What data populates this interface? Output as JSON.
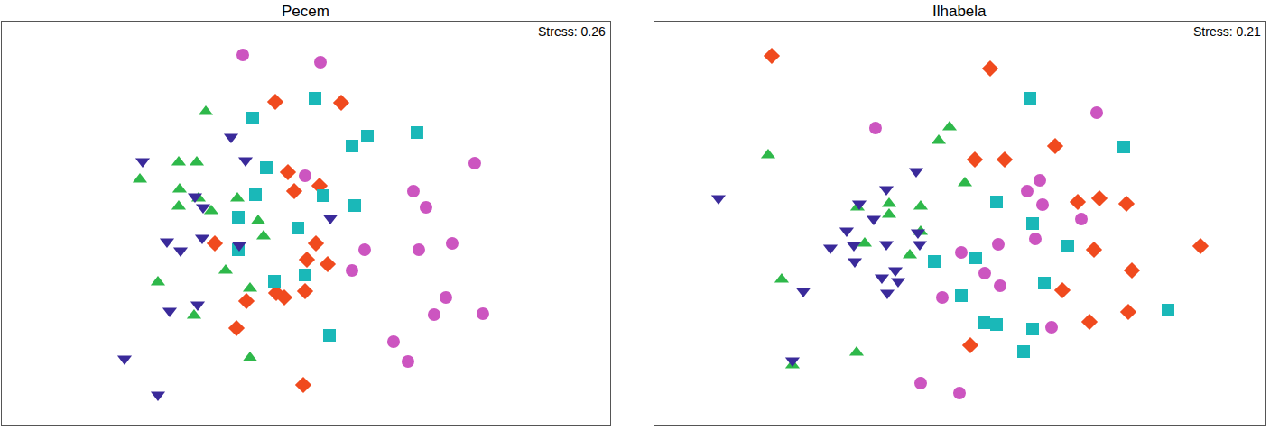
{
  "chart_data": [
    {
      "type": "scatter",
      "title": "Pecem",
      "annotation": "Stress: 0.26",
      "xlim": [
        0,
        674
      ],
      "ylim": [
        0,
        448
      ],
      "tick_labels": false,
      "grid": false,
      "series": [
        {
          "color": "#cc55c0",
          "marker": "circle",
          "x": [
            267,
            353,
            336,
            524,
            456,
            470,
            499,
            462,
            402,
            388,
            492,
            479,
            533,
            434,
            450
          ],
          "y": [
            411,
            403,
            277,
            291,
            260,
            242,
            202,
            195,
            195,
            172,
            142,
            123,
            124,
            93,
            71
          ]
        },
        {
          "color": "#f04a1e",
          "marker": "diamond",
          "x": [
            303,
            376,
            317,
            352,
            324,
            236,
            348,
            338,
            361,
            313,
            304,
            271,
            336,
            260,
            334
          ],
          "y": [
            359,
            358,
            281,
            266,
            260,
            202,
            202,
            184,
            179,
            142,
            147,
            138,
            149,
            108,
            45
          ]
        },
        {
          "color": "#1ab8b8",
          "marker": "square",
          "x": [
            278,
            347,
            388,
            405,
            460,
            293,
            356,
            281,
            391,
            262,
            328,
            262,
            336,
            302,
            363
          ],
          "y": [
            341,
            363,
            310,
            321,
            325,
            286,
            255,
            256,
            244,
            231,
            219,
            195,
            167,
            160,
            100
          ]
        },
        {
          "color": "#2eb84a",
          "marker": "triangle-up",
          "x": [
            226,
            196,
            216,
            153,
            197,
            218,
            232,
            196,
            261,
            284,
            290,
            248,
            173,
            275,
            213,
            275
          ],
          "y": [
            348,
            292,
            292,
            273,
            262,
            252,
            238,
            243,
            252,
            227,
            210,
            172,
            159,
            152,
            122,
            75
          ]
        },
        {
          "color": "#3a2a9a",
          "marker": "triangle-down",
          "x": [
            156,
            254,
            270,
            214,
            223,
            364,
            183,
            198,
            222,
            263,
            186,
            217,
            136,
            173
          ],
          "y": [
            293,
            320,
            294,
            254,
            242,
            230,
            204,
            194,
            208,
            200,
            127,
            134,
            74,
            34
          ]
        }
      ]
    },
    {
      "type": "scatter",
      "title": "Ilhabela",
      "annotation": "Stress: 0.21",
      "xlim": [
        0,
        677
      ],
      "ylim": [
        0,
        448
      ],
      "tick_labels": false,
      "grid": false,
      "series": [
        {
          "color": "#cc55c0",
          "marker": "circle",
          "x": [
            490,
            245,
            427,
            413,
            430,
            473,
            422,
            381,
            340,
            366,
            383,
            319,
            440,
            295,
            338
          ],
          "y": [
            347,
            330,
            272,
            260,
            245,
            229,
            207,
            201,
            192,
            169,
            155,
            142,
            109,
            47,
            36
          ]
        },
        {
          "color": "#f04a1e",
          "marker": "diamond",
          "x": [
            130,
            372,
            444,
            355,
            388,
            469,
            493,
            523,
            487,
            605,
            529,
            452,
            482,
            525,
            350
          ],
          "y": [
            410,
            396,
            310,
            295,
            295,
            248,
            252,
            246,
            195,
            199,
            172,
            150,
            115,
            126,
            89
          ]
        },
        {
          "color": "#1ab8b8",
          "marker": "square",
          "x": [
            416,
            520,
            379,
            419,
            458,
            310,
            356,
            432,
            340,
            365,
            379,
            419,
            569,
            409
          ],
          "y": [
            363,
            309,
            248,
            224,
            199,
            182,
            186,
            158,
            144,
            114,
            112,
            107,
            128,
            82
          ]
        },
        {
          "color": "#2eb84a",
          "marker": "triangle-up",
          "x": [
            126,
            327,
            315,
            344,
            295,
            260,
            225,
            260,
            295,
            233,
            283,
            141,
            224,
            153
          ],
          "y": [
            300,
            331,
            316,
            269,
            243,
            246,
            242,
            234,
            215,
            202,
            189,
            162,
            81,
            67
          ]
        },
        {
          "color": "#3a2a9a",
          "marker": "triangle-down",
          "x": [
            71,
            290,
            257,
            227,
            243,
            213,
            195,
            221,
            292,
            294,
            257,
            267,
            252,
            270,
            222,
            258,
            165,
            153
          ],
          "y": [
            252,
            282,
            262,
            246,
            229,
            216,
            197,
            200,
            214,
            201,
            201,
            172,
            164,
            160,
            182,
            147,
            149,
            72
          ]
        }
      ]
    }
  ]
}
